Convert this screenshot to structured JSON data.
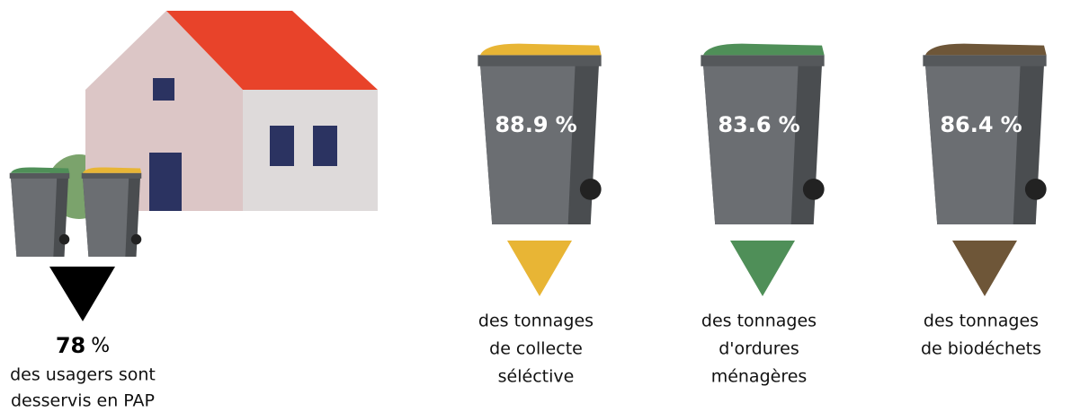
{
  "household": {
    "value": 78,
    "unit": "%",
    "caption": [
      "des usagers sont",
      "desservis en PAP"
    ]
  },
  "bins": [
    {
      "value": 88.9,
      "unit": "%",
      "color": "#e8b535",
      "caption": [
        "des tonnages",
        "de collecte",
        "séléctive"
      ]
    },
    {
      "value": 83.6,
      "unit": "%",
      "color": "#4f8f58",
      "caption": [
        "des tonnages",
        "d'ordures",
        "ménagères"
      ]
    },
    {
      "value": 86.4,
      "unit": "%",
      "color": "#6e5638",
      "caption": [
        "des tonnages",
        "de biodéchets"
      ]
    }
  ]
}
